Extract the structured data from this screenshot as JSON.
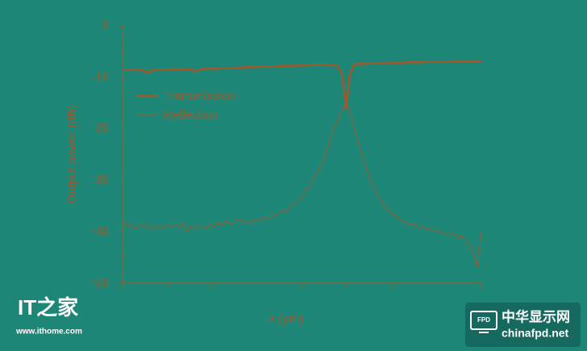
{
  "chart_data": {
    "type": "line",
    "y_label": "Output power (dB)",
    "x_label": "λ (μm)",
    "ylim": [
      -50,
      0
    ],
    "yticks": [
      0,
      -10,
      -20,
      -30,
      -40,
      -50
    ],
    "legend": "upper left",
    "series": [
      {
        "name": "Transmission",
        "color": "#a0592a",
        "values": [
          -8.6,
          -8.5,
          -8.6,
          -8.5,
          -8.6,
          -8.7,
          -9.1,
          -8.7,
          -8.6,
          -8.5,
          -8.5,
          -8.6,
          -8.5,
          -8.4,
          -8.5,
          -8.4,
          -8.5,
          -8.4,
          -8.9,
          -8.5,
          -8.4,
          -8.3,
          -8.3,
          -8.4,
          -8.3,
          -8.2,
          -8.3,
          -8.2,
          -8.2,
          -8.1,
          -8.1,
          -8.0,
          -8.1,
          -8.0,
          -8.0,
          -7.9,
          -8.0,
          -7.9,
          -7.9,
          -7.8,
          -7.8,
          -7.8,
          -7.7,
          -7.8,
          -7.7,
          -7.7,
          -7.7,
          -7.6,
          -7.6,
          -7.6,
          -7.6,
          -7.6,
          -7.6,
          -7.7,
          -7.9,
          -9.5,
          -16,
          -9.2,
          -7.6,
          -7.4,
          -7.4,
          -7.4,
          -7.3,
          -7.3,
          -7.3,
          -7.3,
          -7.2,
          -7.2,
          -7.2,
          -7.2,
          -7.2,
          -7.1,
          -7.1,
          -7.1,
          -7.1,
          -7.1,
          -7.0,
          -7.0,
          -7.0,
          -7.0,
          -7.0,
          -7.0,
          -7.0,
          -6.9,
          -6.9,
          -6.9,
          -6.9,
          -6.9,
          -6.9,
          -6.9,
          -6.9
        ]
      },
      {
        "name": "Reflection",
        "color": "#a0592a",
        "values": [
          -38,
          -39,
          -38.5,
          -39.5,
          -38.7,
          -39.2,
          -38.4,
          -39.6,
          -38.8,
          -39.0,
          -39.4,
          -38.6,
          -39.1,
          -38.5,
          -39.3,
          -38.2,
          -40.1,
          -38.9,
          -39.5,
          -38.7,
          -38.9,
          -39.3,
          -38.4,
          -39.0,
          -38.2,
          -38.8,
          -37.9,
          -38.6,
          -38.3,
          -37.6,
          -38.1,
          -37.8,
          -38.4,
          -37.5,
          -37.9,
          -37.2,
          -37.6,
          -36.8,
          -37.1,
          -36.4,
          -35.8,
          -36.2,
          -35.1,
          -34.6,
          -33.9,
          -33.2,
          -31.8,
          -31.0,
          -29.5,
          -28.2,
          -26.7,
          -24.5,
          -22.1,
          -19.8,
          -18.2,
          -16.4,
          -15.0,
          -16.8,
          -19.6,
          -22.4,
          -25.1,
          -27.3,
          -29.8,
          -31.2,
          -32.9,
          -34.1,
          -35.3,
          -36.0,
          -36.8,
          -37.2,
          -37.9,
          -38.1,
          -38.8,
          -38.4,
          -39.2,
          -38.9,
          -39.6,
          -39.3,
          -40.1,
          -39.7,
          -40.4,
          -40.0,
          -40.8,
          -40.3,
          -41.2,
          -40.7,
          -41.8,
          -42.5,
          -44.1,
          -46.8,
          -40.2
        ]
      }
    ]
  },
  "watermarks": {
    "left_logo": "IT之家",
    "left_url": "www.ithome.com",
    "right_icon": "FPD",
    "right_name": "中华显示网",
    "right_url": "chinafpd.net"
  }
}
